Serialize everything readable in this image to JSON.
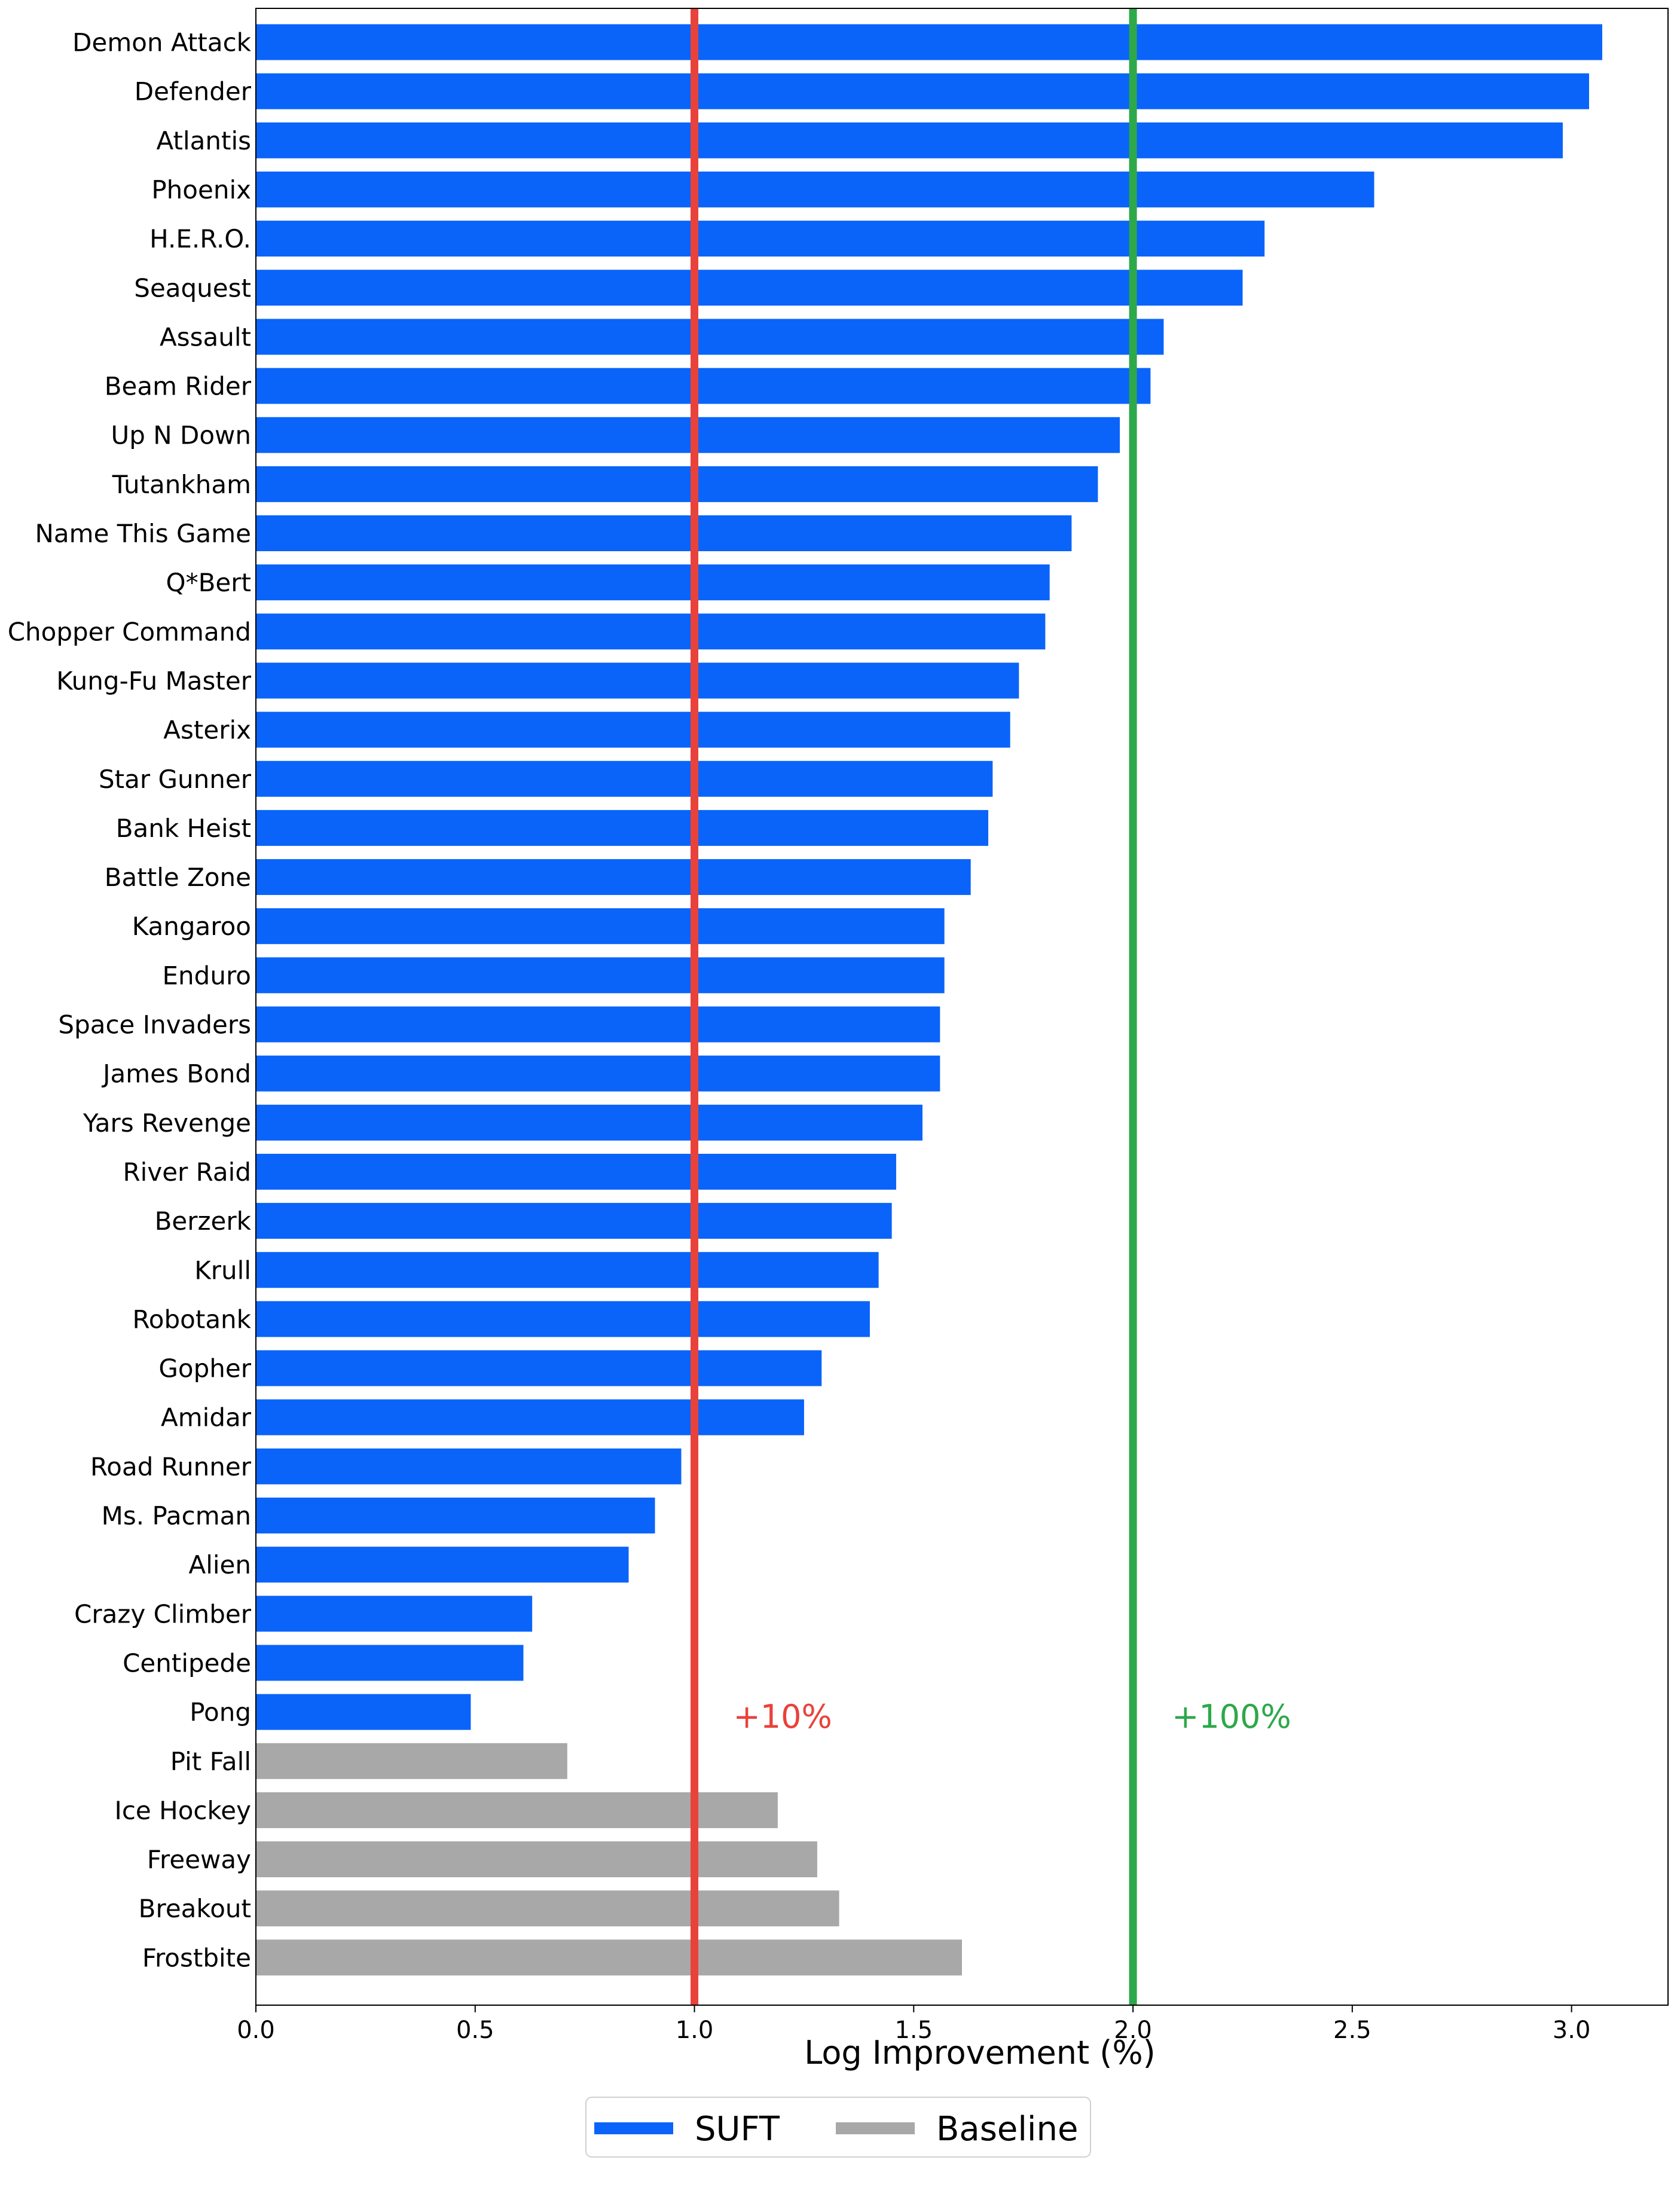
{
  "chart_data": {
    "type": "bar",
    "orientation": "horizontal",
    "title": "",
    "xlabel": "Log Improvement (%)",
    "ylabel": "",
    "xlim": [
      0,
      3.22
    ],
    "xticks": [
      0.0,
      0.5,
      1.0,
      1.5,
      2.0,
      2.5,
      3.0
    ],
    "xtick_labels": [
      "0.0",
      "0.5",
      "1.0",
      "1.5",
      "2.0",
      "2.5",
      "3.0"
    ],
    "grid": false,
    "legend_position": "bottom-center",
    "series": [
      {
        "name": "SUFT",
        "color": "#0a64fa"
      },
      {
        "name": "Baseline",
        "color": "#a8a8a8"
      }
    ],
    "bars": [
      {
        "category": "Demon Attack",
        "value": 3.07,
        "series": "SUFT"
      },
      {
        "category": "Defender",
        "value": 3.04,
        "series": "SUFT"
      },
      {
        "category": "Atlantis",
        "value": 2.98,
        "series": "SUFT"
      },
      {
        "category": "Phoenix",
        "value": 2.55,
        "series": "SUFT"
      },
      {
        "category": "H.E.R.O.",
        "value": 2.3,
        "series": "SUFT"
      },
      {
        "category": "Seaquest",
        "value": 2.25,
        "series": "SUFT"
      },
      {
        "category": "Assault",
        "value": 2.07,
        "series": "SUFT"
      },
      {
        "category": "Beam Rider",
        "value": 2.04,
        "series": "SUFT"
      },
      {
        "category": "Up N Down",
        "value": 1.97,
        "series": "SUFT"
      },
      {
        "category": "Tutankham",
        "value": 1.92,
        "series": "SUFT"
      },
      {
        "category": "Name This Game",
        "value": 1.86,
        "series": "SUFT"
      },
      {
        "category": "Q*Bert",
        "value": 1.81,
        "series": "SUFT"
      },
      {
        "category": "Chopper Command",
        "value": 1.8,
        "series": "SUFT"
      },
      {
        "category": "Kung-Fu Master",
        "value": 1.74,
        "series": "SUFT"
      },
      {
        "category": "Asterix",
        "value": 1.72,
        "series": "SUFT"
      },
      {
        "category": "Star Gunner",
        "value": 1.68,
        "series": "SUFT"
      },
      {
        "category": "Bank Heist",
        "value": 1.67,
        "series": "SUFT"
      },
      {
        "category": "Battle Zone",
        "value": 1.63,
        "series": "SUFT"
      },
      {
        "category": "Kangaroo",
        "value": 1.57,
        "series": "SUFT"
      },
      {
        "category": "Enduro",
        "value": 1.57,
        "series": "SUFT"
      },
      {
        "category": "Space Invaders",
        "value": 1.56,
        "series": "SUFT"
      },
      {
        "category": "James Bond",
        "value": 1.56,
        "series": "SUFT"
      },
      {
        "category": "Yars Revenge",
        "value": 1.52,
        "series": "SUFT"
      },
      {
        "category": "River Raid",
        "value": 1.46,
        "series": "SUFT"
      },
      {
        "category": "Berzerk",
        "value": 1.45,
        "series": "SUFT"
      },
      {
        "category": "Krull",
        "value": 1.42,
        "series": "SUFT"
      },
      {
        "category": "Robotank",
        "value": 1.4,
        "series": "SUFT"
      },
      {
        "category": "Gopher",
        "value": 1.29,
        "series": "SUFT"
      },
      {
        "category": "Amidar",
        "value": 1.25,
        "series": "SUFT"
      },
      {
        "category": "Road Runner",
        "value": 0.97,
        "series": "SUFT"
      },
      {
        "category": "Ms. Pacman",
        "value": 0.91,
        "series": "SUFT"
      },
      {
        "category": "Alien",
        "value": 0.85,
        "series": "SUFT"
      },
      {
        "category": "Crazy Climber",
        "value": 0.63,
        "series": "SUFT"
      },
      {
        "category": "Centipede",
        "value": 0.61,
        "series": "SUFT"
      },
      {
        "category": "Pong",
        "value": 0.49,
        "series": "SUFT"
      },
      {
        "category": "Pit Fall",
        "value": 0.71,
        "series": "Baseline"
      },
      {
        "category": "Ice Hockey",
        "value": 1.19,
        "series": "Baseline"
      },
      {
        "category": "Freeway",
        "value": 1.28,
        "series": "Baseline"
      },
      {
        "category": "Breakout",
        "value": 1.33,
        "series": "Baseline"
      },
      {
        "category": "Frostbite",
        "value": 1.61,
        "series": "Baseline"
      }
    ],
    "reference_lines": [
      {
        "x": 1.0,
        "label": "+10%",
        "color": "#e8423a"
      },
      {
        "x": 2.0,
        "label": "+100%",
        "color": "#2da84a"
      }
    ]
  }
}
